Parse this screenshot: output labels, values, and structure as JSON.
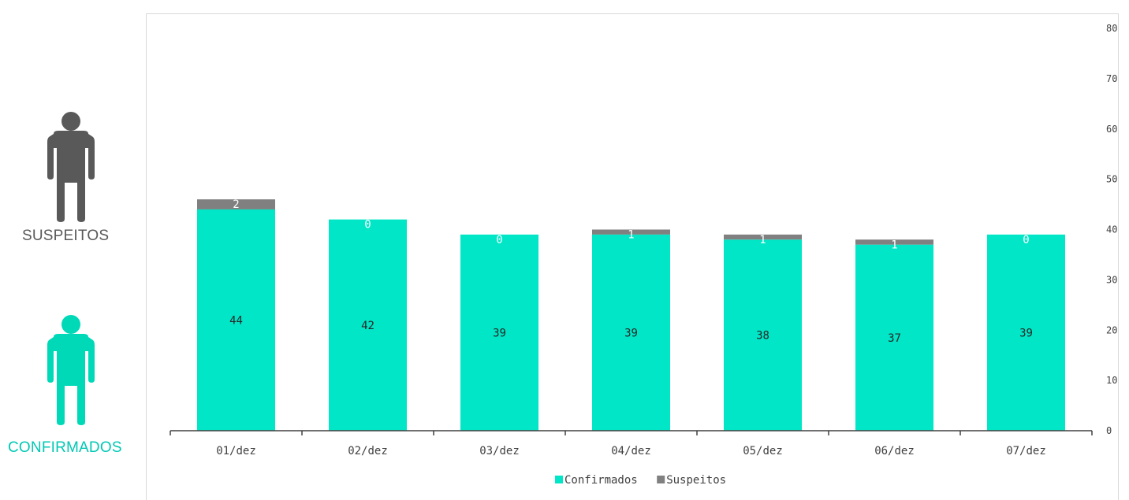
{
  "side_legend": {
    "suspeitos_label": "SUSPEITOS",
    "confirmados_label": "CONFIRMADOS",
    "suspeitos_icon": "person-icon",
    "confirmados_icon": "person-icon",
    "suspeitos_color": "#595959",
    "confirmados_color": "#00e6c6"
  },
  "chart_data": {
    "type": "bar",
    "stacked": true,
    "categories": [
      "01/dez",
      "02/dez",
      "03/dez",
      "04/dez",
      "05/dez",
      "06/dez",
      "07/dez"
    ],
    "series": [
      {
        "name": "Confirmados",
        "values": [
          44,
          42,
          39,
          39,
          38,
          37,
          39
        ],
        "color": "#00e6c6"
      },
      {
        "name": "Suspeitos",
        "values": [
          2,
          0,
          0,
          1,
          1,
          1,
          0
        ],
        "color": "#808080"
      }
    ],
    "ylim": [
      0,
      80
    ],
    "yticks": [
      0,
      10,
      20,
      30,
      40,
      50,
      60,
      70,
      80
    ],
    "y_axis_side": "right",
    "grid": false,
    "legend": "bottom"
  }
}
